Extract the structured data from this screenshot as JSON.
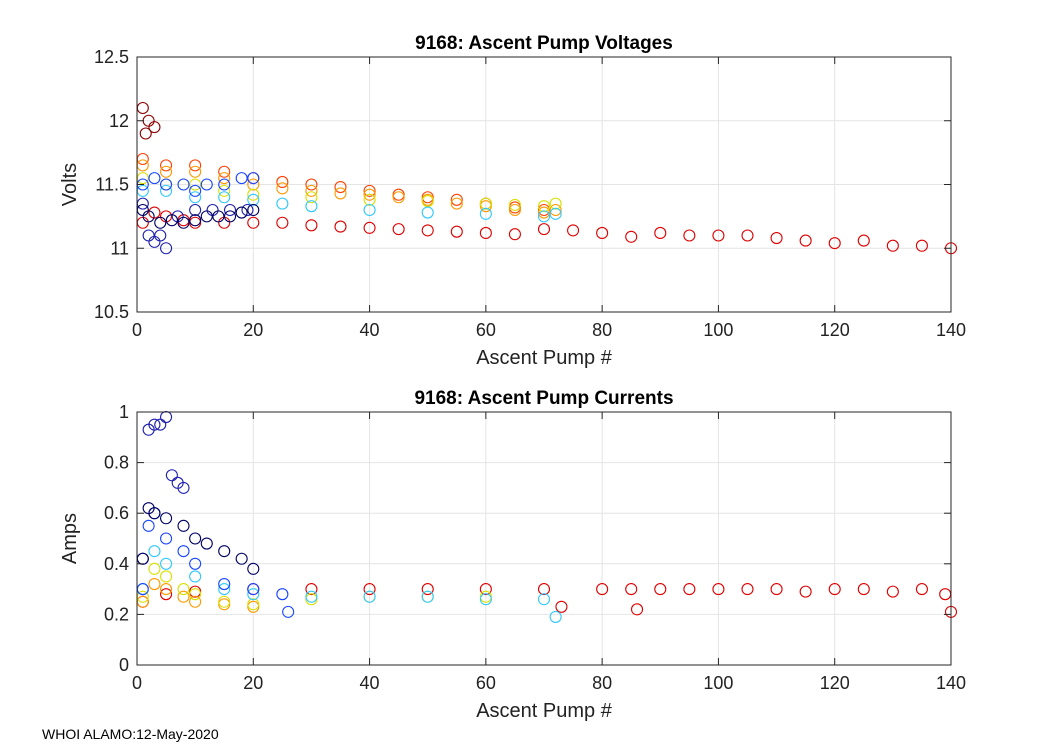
{
  "footer": {
    "text": "WHOI ALAMO:12-May-2020"
  },
  "colors": {
    "grid": "#e4e4e4",
    "axis": "#262626",
    "early_profile": "#e00000",
    "late_profile": "#000064"
  },
  "chart_data": [
    {
      "type": "scatter",
      "title": "9168: Ascent Pump Voltages",
      "xlabel": "Ascent Pump #",
      "ylabel": "Volts",
      "xlim": [
        0,
        140
      ],
      "ylim": [
        10.5,
        12.5
      ],
      "xticks": [
        "0",
        "20",
        "40",
        "60",
        "80",
        "100",
        "120",
        "140"
      ],
      "yticks": [
        "10.5",
        "11",
        "11.5",
        "12",
        "12.5"
      ],
      "grid": true,
      "marker": "open-circle",
      "colormap": "jet (profiles colored red = earliest to dark blue = latest)",
      "series": [
        {
          "color": "#e00000",
          "x": [
            1,
            3,
            5,
            8,
            10,
            15,
            20,
            25,
            30,
            35,
            40,
            45,
            50,
            55,
            60,
            65,
            70,
            75,
            80,
            85,
            90,
            95,
            100,
            105,
            110,
            115,
            120,
            125,
            130,
            135,
            140
          ],
          "y": [
            11.2,
            11.28,
            11.25,
            11.22,
            11.2,
            11.2,
            11.2,
            11.2,
            11.18,
            11.17,
            11.16,
            11.15,
            11.14,
            11.13,
            11.12,
            11.11,
            11.15,
            11.14,
            11.12,
            11.09,
            11.12,
            11.1,
            11.1,
            11.1,
            11.08,
            11.06,
            11.04,
            11.06,
            11.02,
            11.02,
            11.0
          ]
        },
        {
          "color": "#ff4000",
          "x": [
            1,
            5,
            10,
            15,
            20,
            25,
            30,
            35,
            40,
            45,
            50,
            55,
            60,
            65,
            70
          ],
          "y": [
            11.7,
            11.65,
            11.65,
            11.6,
            11.55,
            11.52,
            11.5,
            11.48,
            11.45,
            11.42,
            11.4,
            11.38,
            11.35,
            11.32,
            11.3
          ]
        },
        {
          "color": "#ff9900",
          "x": [
            1,
            5,
            10,
            15,
            20,
            25,
            30,
            35,
            40,
            45,
            50,
            55,
            60,
            65,
            70,
            72
          ],
          "y": [
            11.65,
            11.6,
            11.6,
            11.55,
            11.5,
            11.47,
            11.45,
            11.43,
            11.42,
            11.4,
            11.38,
            11.35,
            11.33,
            11.3,
            11.28,
            11.3
          ]
        },
        {
          "color": "#d8e000",
          "x": [
            1,
            5,
            10,
            15,
            20,
            30,
            40,
            50,
            60,
            65,
            70,
            72
          ],
          "y": [
            11.55,
            11.5,
            11.5,
            11.45,
            11.42,
            11.4,
            11.38,
            11.37,
            11.35,
            11.34,
            11.33,
            11.35
          ]
        },
        {
          "color": "#30c8ff",
          "x": [
            1,
            5,
            10,
            15,
            20,
            25,
            30,
            40,
            50,
            60,
            70,
            72
          ],
          "y": [
            11.45,
            11.45,
            11.4,
            11.4,
            11.38,
            11.35,
            11.33,
            11.3,
            11.28,
            11.27,
            11.25,
            11.27
          ]
        },
        {
          "color": "#1846ff",
          "x": [
            1,
            3,
            5,
            8,
            10,
            12,
            15,
            18,
            20
          ],
          "y": [
            11.5,
            11.55,
            11.5,
            11.5,
            11.45,
            11.5,
            11.5,
            11.55,
            11.55
          ]
        },
        {
          "color": "#2020b0",
          "x": [
            1,
            2,
            3,
            4,
            5,
            7,
            10,
            13,
            16,
            19
          ],
          "y": [
            11.35,
            11.1,
            11.05,
            11.1,
            11.0,
            11.25,
            11.3,
            11.3,
            11.3,
            11.3
          ]
        },
        {
          "color": "#8b0000",
          "x": [
            1,
            1.5,
            2,
            3
          ],
          "y": [
            12.1,
            11.9,
            12.0,
            11.95
          ]
        },
        {
          "color": "#000064",
          "x": [
            1,
            2,
            4,
            6,
            8,
            10,
            12,
            14,
            16,
            18,
            20
          ],
          "y": [
            11.3,
            11.25,
            11.2,
            11.22,
            11.2,
            11.22,
            11.25,
            11.25,
            11.25,
            11.28,
            11.3
          ]
        }
      ]
    },
    {
      "type": "scatter",
      "title": "9168: Ascent Pump Currents",
      "xlabel": "Ascent Pump #",
      "ylabel": "Amps",
      "xlim": [
        0,
        140
      ],
      "ylim": [
        0,
        1
      ],
      "xticks": [
        "0",
        "20",
        "40",
        "60",
        "80",
        "100",
        "120",
        "140"
      ],
      "yticks": [
        "0",
        "0.2",
        "0.4",
        "0.6",
        "0.8",
        "1"
      ],
      "grid": true,
      "marker": "open-circle",
      "colormap": "jet (profiles colored red = earliest to dark blue = latest)",
      "series": [
        {
          "color": "#e00000",
          "x": [
            1,
            5,
            10,
            20,
            30,
            40,
            50,
            60,
            70,
            73,
            80,
            85,
            86,
            90,
            95,
            100,
            105,
            110,
            115,
            120,
            125,
            130,
            135,
            139,
            140
          ],
          "y": [
            0.25,
            0.28,
            0.29,
            0.3,
            0.3,
            0.3,
            0.3,
            0.3,
            0.3,
            0.23,
            0.3,
            0.3,
            0.22,
            0.3,
            0.3,
            0.3,
            0.3,
            0.3,
            0.29,
            0.3,
            0.3,
            0.29,
            0.3,
            0.28,
            0.21
          ]
        },
        {
          "color": "#ff9900",
          "x": [
            1,
            3,
            5,
            8,
            10,
            15,
            20
          ],
          "y": [
            0.25,
            0.32,
            0.3,
            0.27,
            0.25,
            0.24,
            0.23
          ]
        },
        {
          "color": "#d8e000",
          "x": [
            1,
            3,
            5,
            8,
            10,
            15,
            20,
            30,
            40,
            50,
            60
          ],
          "y": [
            0.27,
            0.38,
            0.35,
            0.3,
            0.28,
            0.25,
            0.24,
            0.26,
            0.27,
            0.27,
            0.27
          ]
        },
        {
          "color": "#30c8ff",
          "x": [
            1,
            3,
            5,
            10,
            15,
            20,
            30,
            40,
            50,
            60,
            70,
            72
          ],
          "y": [
            0.3,
            0.45,
            0.4,
            0.35,
            0.3,
            0.28,
            0.27,
            0.27,
            0.27,
            0.26,
            0.26,
            0.19
          ]
        },
        {
          "color": "#1846ff",
          "x": [
            1,
            2,
            3,
            5,
            8,
            10,
            15,
            20,
            25,
            26
          ],
          "y": [
            0.3,
            0.55,
            0.6,
            0.5,
            0.45,
            0.4,
            0.32,
            0.3,
            0.28,
            0.21
          ]
        },
        {
          "color": "#2020b0",
          "x": [
            1,
            2,
            3,
            4,
            5,
            6,
            7,
            8
          ],
          "y": [
            0.42,
            0.93,
            0.95,
            0.95,
            0.98,
            0.75,
            0.72,
            0.7
          ]
        },
        {
          "color": "#000064",
          "x": [
            1,
            2,
            3,
            5,
            8,
            10,
            12,
            15,
            18,
            20
          ],
          "y": [
            0.42,
            0.62,
            0.6,
            0.58,
            0.55,
            0.5,
            0.48,
            0.45,
            0.42,
            0.38
          ]
        }
      ]
    }
  ]
}
